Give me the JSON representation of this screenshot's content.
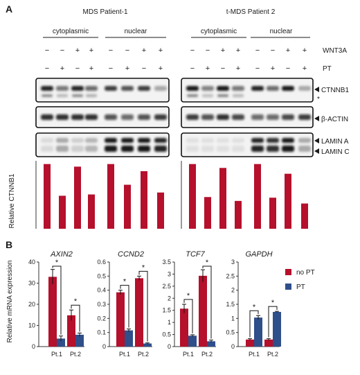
{
  "panel_a": {
    "label": "A",
    "patients": [
      "MDS Patient-1",
      "t-MDS Patient 2"
    ],
    "fractions": [
      "cytoplasmic",
      "nuclear"
    ],
    "row_labels": [
      "WNT3A",
      "PT"
    ],
    "wnt3a": [
      "−",
      "−",
      "+",
      "+",
      "−",
      "−",
      "+",
      "+"
    ],
    "pt": [
      "−",
      "+",
      "−",
      "+",
      "−",
      "+",
      "−",
      "+"
    ],
    "blot_labels": [
      "CTNNB1",
      "*",
      "β-ACTIN",
      "LAMIN A",
      "LAMIN C"
    ],
    "colors": {
      "bar": "#b5102c"
    }
  },
  "panel_b": {
    "label": "B",
    "legend": [
      "no PT",
      "PT"
    ],
    "colors": {
      "no_pt": "#b5102c",
      "pt": "#2f4f8a"
    }
  },
  "chart_data": [
    {
      "type": "bar",
      "panel": "A",
      "ylabel": "Relative CTNNB1",
      "ylim": [
        0,
        1.05
      ],
      "series": [
        {
          "values": [
            1.0,
            0.51,
            0.96,
            0.53,
            1.0,
            0.68,
            0.89,
            0.56
          ]
        },
        {
          "values": [
            1.0,
            0.49,
            0.94,
            0.43,
            1.0,
            0.48,
            0.85,
            0.39
          ]
        }
      ]
    },
    {
      "type": "bar",
      "panel": "B",
      "title": "AXIN2",
      "ylabel": "Relative mRNA expression",
      "categories": [
        "Pt.1",
        "Pt.2"
      ],
      "ylim": [
        0,
        40
      ],
      "yticks": [
        0,
        10,
        20,
        30,
        40
      ],
      "series": [
        {
          "name": "no PT",
          "values": [
            33.0,
            14.8
          ],
          "errors": [
            3.5,
            2.5
          ]
        },
        {
          "name": "PT",
          "values": [
            3.8,
            5.6
          ],
          "errors": [
            1.2,
            0.8
          ]
        }
      ],
      "annotations": [
        "*",
        "*"
      ]
    },
    {
      "type": "bar",
      "panel": "B",
      "title": "CCND2",
      "categories": [
        "Pt.1",
        "Pt.2"
      ],
      "ylim": [
        0,
        0.6
      ],
      "yticks": [
        0,
        0.1,
        0.2,
        0.3,
        0.4,
        0.5,
        0.6
      ],
      "series": [
        {
          "name": "no PT",
          "values": [
            0.385,
            0.485
          ],
          "errors": [
            0.015,
            0.015
          ]
        },
        {
          "name": "PT",
          "values": [
            0.115,
            0.022
          ],
          "errors": [
            0.01,
            0.004
          ]
        }
      ],
      "annotations": [
        "*",
        "*"
      ]
    },
    {
      "type": "bar",
      "panel": "B",
      "title": "TCF7",
      "categories": [
        "Pt.1",
        "Pt.2"
      ],
      "ylim": [
        0,
        3.5
      ],
      "yticks": [
        0,
        0.5,
        1,
        1.5,
        2,
        2.5,
        3,
        3.5
      ],
      "series": [
        {
          "name": "no PT",
          "values": [
            1.57,
            2.93
          ],
          "errors": [
            0.18,
            0.25
          ]
        },
        {
          "name": "PT",
          "values": [
            0.45,
            0.22
          ],
          "errors": [
            0.04,
            0.05
          ]
        }
      ],
      "annotations": [
        "*",
        "*"
      ]
    },
    {
      "type": "bar",
      "panel": "B",
      "title": "GAPDH",
      "categories": [
        "Pt.1",
        "Pt.2"
      ],
      "ylim": [
        0,
        3
      ],
      "yticks": [
        0,
        0.5,
        1,
        1.5,
        2,
        2.5,
        3
      ],
      "series": [
        {
          "name": "no PT",
          "values": [
            0.25,
            0.25
          ],
          "errors": [
            0.03,
            0.03
          ]
        },
        {
          "name": "PT",
          "values": [
            1.03,
            1.23
          ],
          "errors": [
            0.07,
            0.02
          ]
        }
      ],
      "annotations": [
        "*",
        "*"
      ]
    }
  ]
}
